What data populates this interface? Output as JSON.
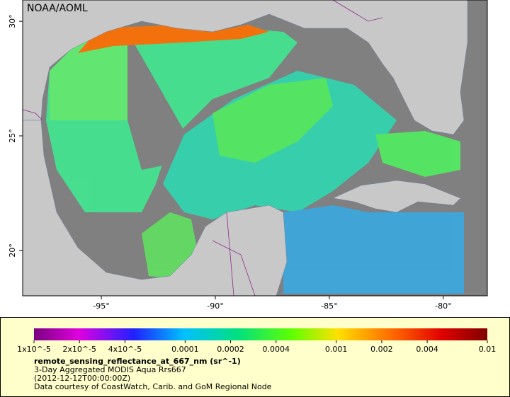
{
  "map": {
    "credit": "NOAA/AOML",
    "xlim": [
      -98.45,
      -78.07
    ],
    "ylim": [
      18.02,
      30.93
    ],
    "xticks": [
      {
        "value": -95,
        "label": "-95°"
      },
      {
        "value": -90,
        "label": "-90°"
      },
      {
        "value": -85,
        "label": "-85°"
      },
      {
        "value": -80,
        "label": "-80°"
      }
    ],
    "yticks": [
      {
        "value": 20,
        "label": "20°"
      },
      {
        "value": 25,
        "label": "25°"
      },
      {
        "value": 30,
        "label": "30°"
      }
    ]
  },
  "colorbar": {
    "scale": "log",
    "lim": [
      1e-05,
      0.01
    ],
    "ticks": [
      {
        "value": 1e-05,
        "label": "1x10^-5"
      },
      {
        "value": 2e-05,
        "label": "2x10^-5"
      },
      {
        "value": 4e-05,
        "label": "4x10^-5"
      },
      0.0001,
      0.0002,
      0.0004,
      0.001,
      0.002,
      0.004,
      0.01
    ],
    "variable": "remote_sensing_reflectance_at_667_nm (sr^-1)",
    "lines": [
      "3-Day Aggregated MODIS Aqua Rrs667",
      "(2012-12-12T00:00:00Z)",
      "Data courtesy of CoastWatch, Carib. and GoM Regional Node"
    ]
  }
}
